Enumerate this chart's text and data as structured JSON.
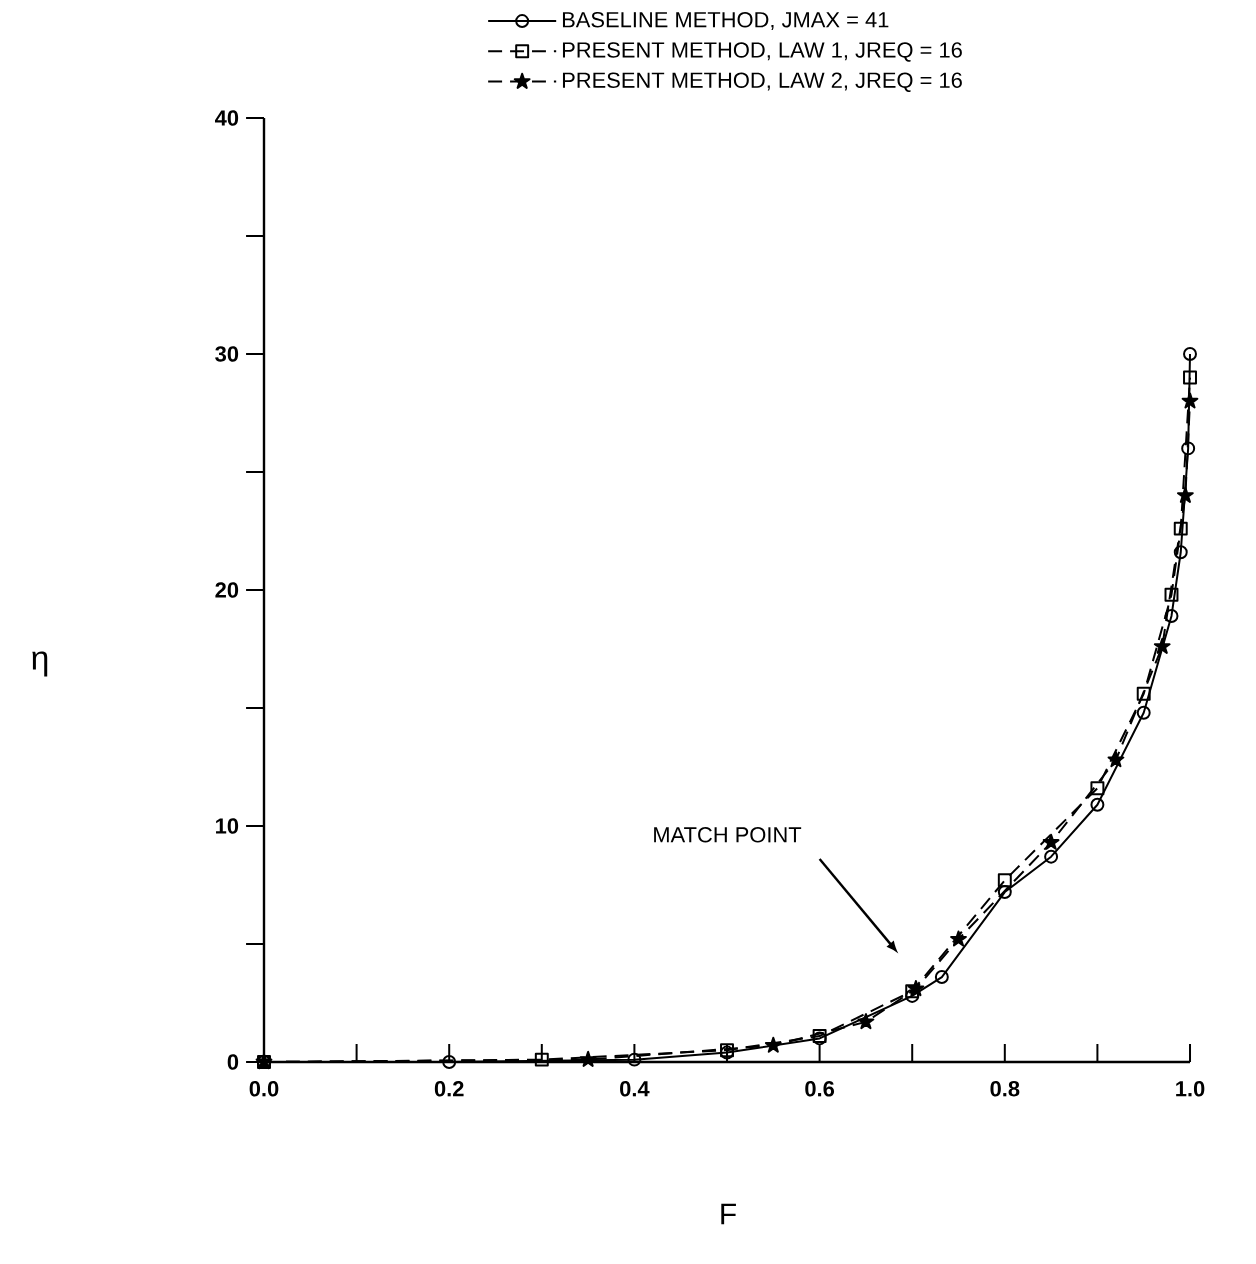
{
  "chart_data": {
    "type": "line",
    "xlabel": "F",
    "ylabel": "η",
    "xlim": [
      0,
      1
    ],
    "ylim": [
      0,
      40
    ],
    "xticks": [
      {
        "value": 0,
        "label": "0.0"
      },
      {
        "value": 0.1,
        "label": null
      },
      {
        "value": 0.2,
        "label": "0.2"
      },
      {
        "value": 0.3,
        "label": null
      },
      {
        "value": 0.4,
        "label": "0.4"
      },
      {
        "value": 0.5,
        "label": null
      },
      {
        "value": 0.6,
        "label": "0.6"
      },
      {
        "value": 0.7,
        "label": null
      },
      {
        "value": 0.8,
        "label": "0.8"
      },
      {
        "value": 0.9,
        "label": null
      },
      {
        "value": 1,
        "label": "1.0"
      }
    ],
    "yticks": [
      0,
      {
        "value": 5,
        "label": null
      },
      10,
      {
        "value": 15,
        "label": null
      },
      20,
      {
        "value": 25,
        "label": null
      },
      30,
      {
        "value": 35,
        "label": null
      },
      40
    ],
    "legend": "top",
    "grid": false,
    "annotations": [
      "MATCH POINT"
    ],
    "series": [
      {
        "name": "BASELINE METHOD, JMAX = 41",
        "color": "#000000",
        "marker": "circle",
        "line_style": "solid",
        "x": [
          0,
          0.2,
          0.4,
          0.5,
          0.6,
          0.7,
          0.732,
          0.8,
          0.85,
          0.9,
          0.95,
          0.98,
          0.99,
          0.998,
          1.0
        ],
        "values": [
          0,
          0,
          0.1,
          0.4,
          1.0,
          2.8,
          3.6,
          7.2,
          8.7,
          10.9,
          14.8,
          18.9,
          21.6,
          26,
          30
        ]
      },
      {
        "name": "PRESENT METHOD, LAW 1, JREQ = 16",
        "color": "#000000",
        "marker": "square",
        "line_style": "dashed",
        "x": [
          0,
          0.3,
          0.5,
          0.6,
          0.7,
          0.8,
          0.9,
          0.95,
          0.98,
          0.99,
          1.0
        ],
        "values": [
          0,
          0.1,
          0.5,
          1.1,
          3.0,
          7.7,
          11.6,
          15.6,
          19.8,
          22.6,
          29
        ]
      },
      {
        "name": "PRESENT METHOD, LAW 2, JREQ = 16",
        "color": "#000000",
        "marker": "star",
        "line_style": "dashed",
        "x": [
          0,
          0.35,
          0.55,
          0.65,
          0.704,
          0.75,
          0.85,
          0.92,
          0.97,
          0.995,
          1.0
        ],
        "values": [
          0,
          0.1,
          0.7,
          1.7,
          3.1,
          5.2,
          9.3,
          12.8,
          17.6,
          24,
          28
        ]
      }
    ]
  }
}
